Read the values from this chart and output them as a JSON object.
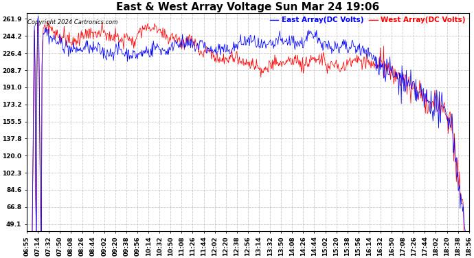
{
  "title": "East & West Array Voltage Sun Mar 24 19:06",
  "copyright": "Copyright 2024 Cartronics.com",
  "east_label": "East Array(DC Volts)",
  "west_label": "West Array(DC Volts)",
  "east_color": "#0000FF",
  "west_color": "#FF0000",
  "background_color": "#FFFFFF",
  "grid_color": "#BBBBBB",
  "title_fontsize": 11,
  "legend_fontsize": 7.5,
  "tick_fontsize": 6.5,
  "ylabel_values": [
    49.1,
    66.8,
    84.6,
    102.3,
    120.0,
    137.8,
    155.5,
    173.2,
    191.0,
    208.7,
    226.4,
    244.2,
    261.9
  ],
  "ylim_min": 42,
  "ylim_max": 268,
  "num_points": 700,
  "time_labels": [
    "06:55",
    "07:14",
    "07:32",
    "07:50",
    "08:08",
    "08:26",
    "08:44",
    "09:02",
    "09:20",
    "09:38",
    "09:56",
    "10:14",
    "10:32",
    "10:50",
    "11:08",
    "11:26",
    "11:44",
    "12:02",
    "12:20",
    "12:38",
    "12:56",
    "13:14",
    "13:32",
    "13:50",
    "14:08",
    "14:26",
    "14:44",
    "15:02",
    "15:20",
    "15:38",
    "15:56",
    "16:14",
    "16:32",
    "16:50",
    "17:08",
    "17:26",
    "17:44",
    "18:02",
    "18:20",
    "18:38",
    "18:56"
  ]
}
